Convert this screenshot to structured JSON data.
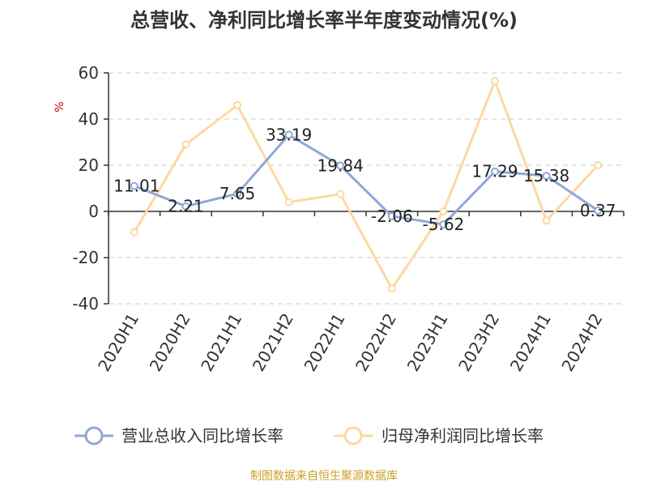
{
  "chart_data": {
    "type": "line",
    "title": "总营收、净利同比增长率半年度变动情况(%)",
    "ylabel": "%",
    "xlabel": "",
    "categories": [
      "2020H1",
      "2020H2",
      "2021H1",
      "2021H2",
      "2022H1",
      "2022H2",
      "2023H1",
      "2023H2",
      "2024H1",
      "2024H2"
    ],
    "ylim": [
      -40,
      60
    ],
    "yticks": [
      "60",
      "40",
      "20",
      "0",
      "-20",
      "-40"
    ],
    "ytick_values": [
      60,
      40,
      20,
      0,
      -20,
      -40
    ],
    "grid": true,
    "legend_position": "bottom",
    "series": [
      {
        "name": "营业总收入同比增长率",
        "color": "#8fa8d6",
        "values": [
          11.01,
          2.21,
          7.65,
          33.19,
          19.84,
          -2.06,
          -5.62,
          17.29,
          15.38,
          0.37
        ],
        "labels": [
          "11.01",
          "2.21",
          "7.65",
          "33.19",
          "19.84",
          "-2.06",
          "-5.62",
          "17.29",
          "15.38",
          "0.37"
        ]
      },
      {
        "name": "归母净利润同比增长率",
        "color": "#fdd9a0",
        "values": [
          -9,
          29,
          46,
          4,
          7.5,
          -33.5,
          0,
          56.5,
          -4,
          20
        ]
      }
    ]
  },
  "source_text": "制图数据来自恒生聚源数据库"
}
